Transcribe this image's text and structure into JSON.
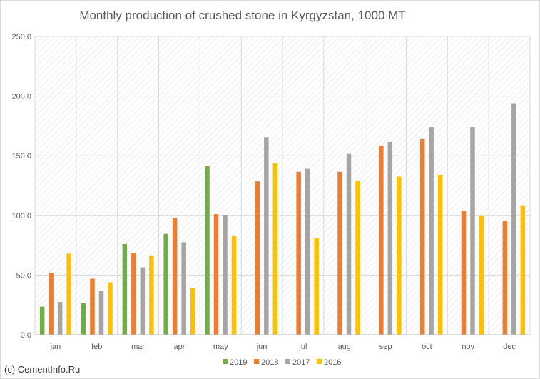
{
  "chart_data": {
    "type": "bar",
    "title": "Monthly production of crushed stone in Kyrgyzstan, 1000 MT",
    "xlabel": "",
    "ylabel": "",
    "ylim": [
      0,
      250
    ],
    "yticks": [
      "0,0",
      "50,0",
      "100,0",
      "150,0",
      "200,0",
      "250,0"
    ],
    "categories": [
      "jan",
      "feb",
      "mar",
      "apr",
      "may",
      "jun",
      "jul",
      "aug",
      "sep",
      "oct",
      "nov",
      "dec"
    ],
    "series": [
      {
        "name": "2019",
        "color": "#70ad47",
        "values": [
          23.5,
          26.5,
          76.0,
          84.5,
          141.5,
          null,
          null,
          null,
          null,
          null,
          null,
          null
        ]
      },
      {
        "name": "2018",
        "color": "#ed7d31",
        "values": [
          51.5,
          47.0,
          68.5,
          97.5,
          101.0,
          128.5,
          136.5,
          136.5,
          158.5,
          164.0,
          103.5,
          95.5
        ]
      },
      {
        "name": "2017",
        "color": "#a5a5a5",
        "values": [
          27.5,
          36.5,
          56.5,
          77.5,
          100.5,
          165.5,
          139.0,
          151.5,
          161.5,
          174.0,
          174.0,
          193.5
        ]
      },
      {
        "name": "2016",
        "color": "#ffc000",
        "values": [
          68.0,
          44.0,
          66.5,
          39.0,
          83.0,
          143.5,
          81.0,
          129.0,
          132.5,
          134.0,
          100.0,
          108.5
        ]
      }
    ],
    "grid": true,
    "legend_position": "bottom"
  },
  "credit": "(c) CementInfo.Ru",
  "colors": {
    "gridline": "#d9d9d9",
    "axis": "#bfbfbf",
    "hatch": "#dcdcdc"
  }
}
